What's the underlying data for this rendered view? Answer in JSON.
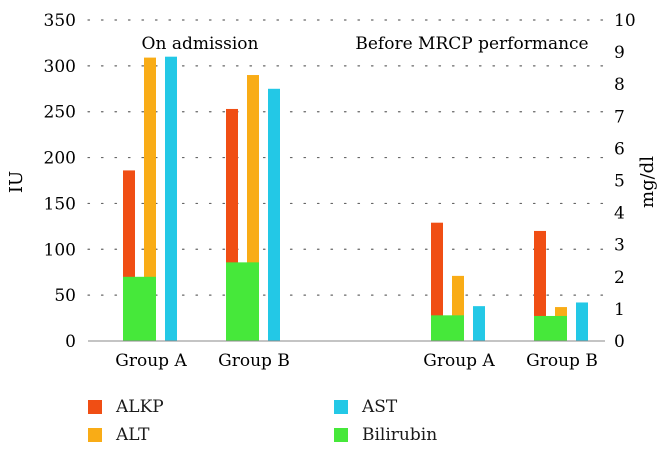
{
  "chart_data": {
    "type": "bar",
    "panels": [
      {
        "title": "On admission",
        "groups": [
          "Group A",
          "Group B"
        ]
      },
      {
        "title": "Before MRCP performance",
        "groups": [
          "Group A",
          "Group B"
        ]
      }
    ],
    "categories": [
      "Group A",
      "Group B",
      "Group A",
      "Group B"
    ],
    "series": [
      {
        "name": "ALKP",
        "axis": "left",
        "color": "#f04e14",
        "values": [
          186,
          253,
          129,
          120
        ]
      },
      {
        "name": "ALT",
        "axis": "left",
        "color": "#f9ac16",
        "values": [
          309,
          290,
          71,
          37
        ]
      },
      {
        "name": "AST",
        "axis": "left",
        "color": "#23c8e6",
        "values": [
          310,
          275,
          38,
          42
        ]
      },
      {
        "name": "Bilirubin",
        "axis": "right",
        "color": "#46e83a",
        "values": [
          2.0,
          2.45,
          0.8,
          0.78
        ]
      }
    ],
    "ylabel": "IU",
    "ylabel_right": "mg/dl",
    "ylim": [
      0,
      350
    ],
    "ylim_right": [
      0,
      10
    ],
    "yticks": [
      "0",
      "50",
      "100",
      "150",
      "200",
      "250",
      "300",
      "350"
    ],
    "yticks_right": [
      "0",
      "1",
      "2",
      "3",
      "4",
      "5",
      "6",
      "7",
      "8",
      "9",
      "10"
    ],
    "grid": "dotted-horizontal"
  },
  "legend": [
    {
      "label": "ALKP",
      "color": "#f04e14"
    },
    {
      "label": "AST",
      "color": "#23c8e6"
    },
    {
      "label": "ALT",
      "color": "#f9ac16"
    },
    {
      "label": "Bilirubin",
      "color": "#46e83a"
    }
  ]
}
